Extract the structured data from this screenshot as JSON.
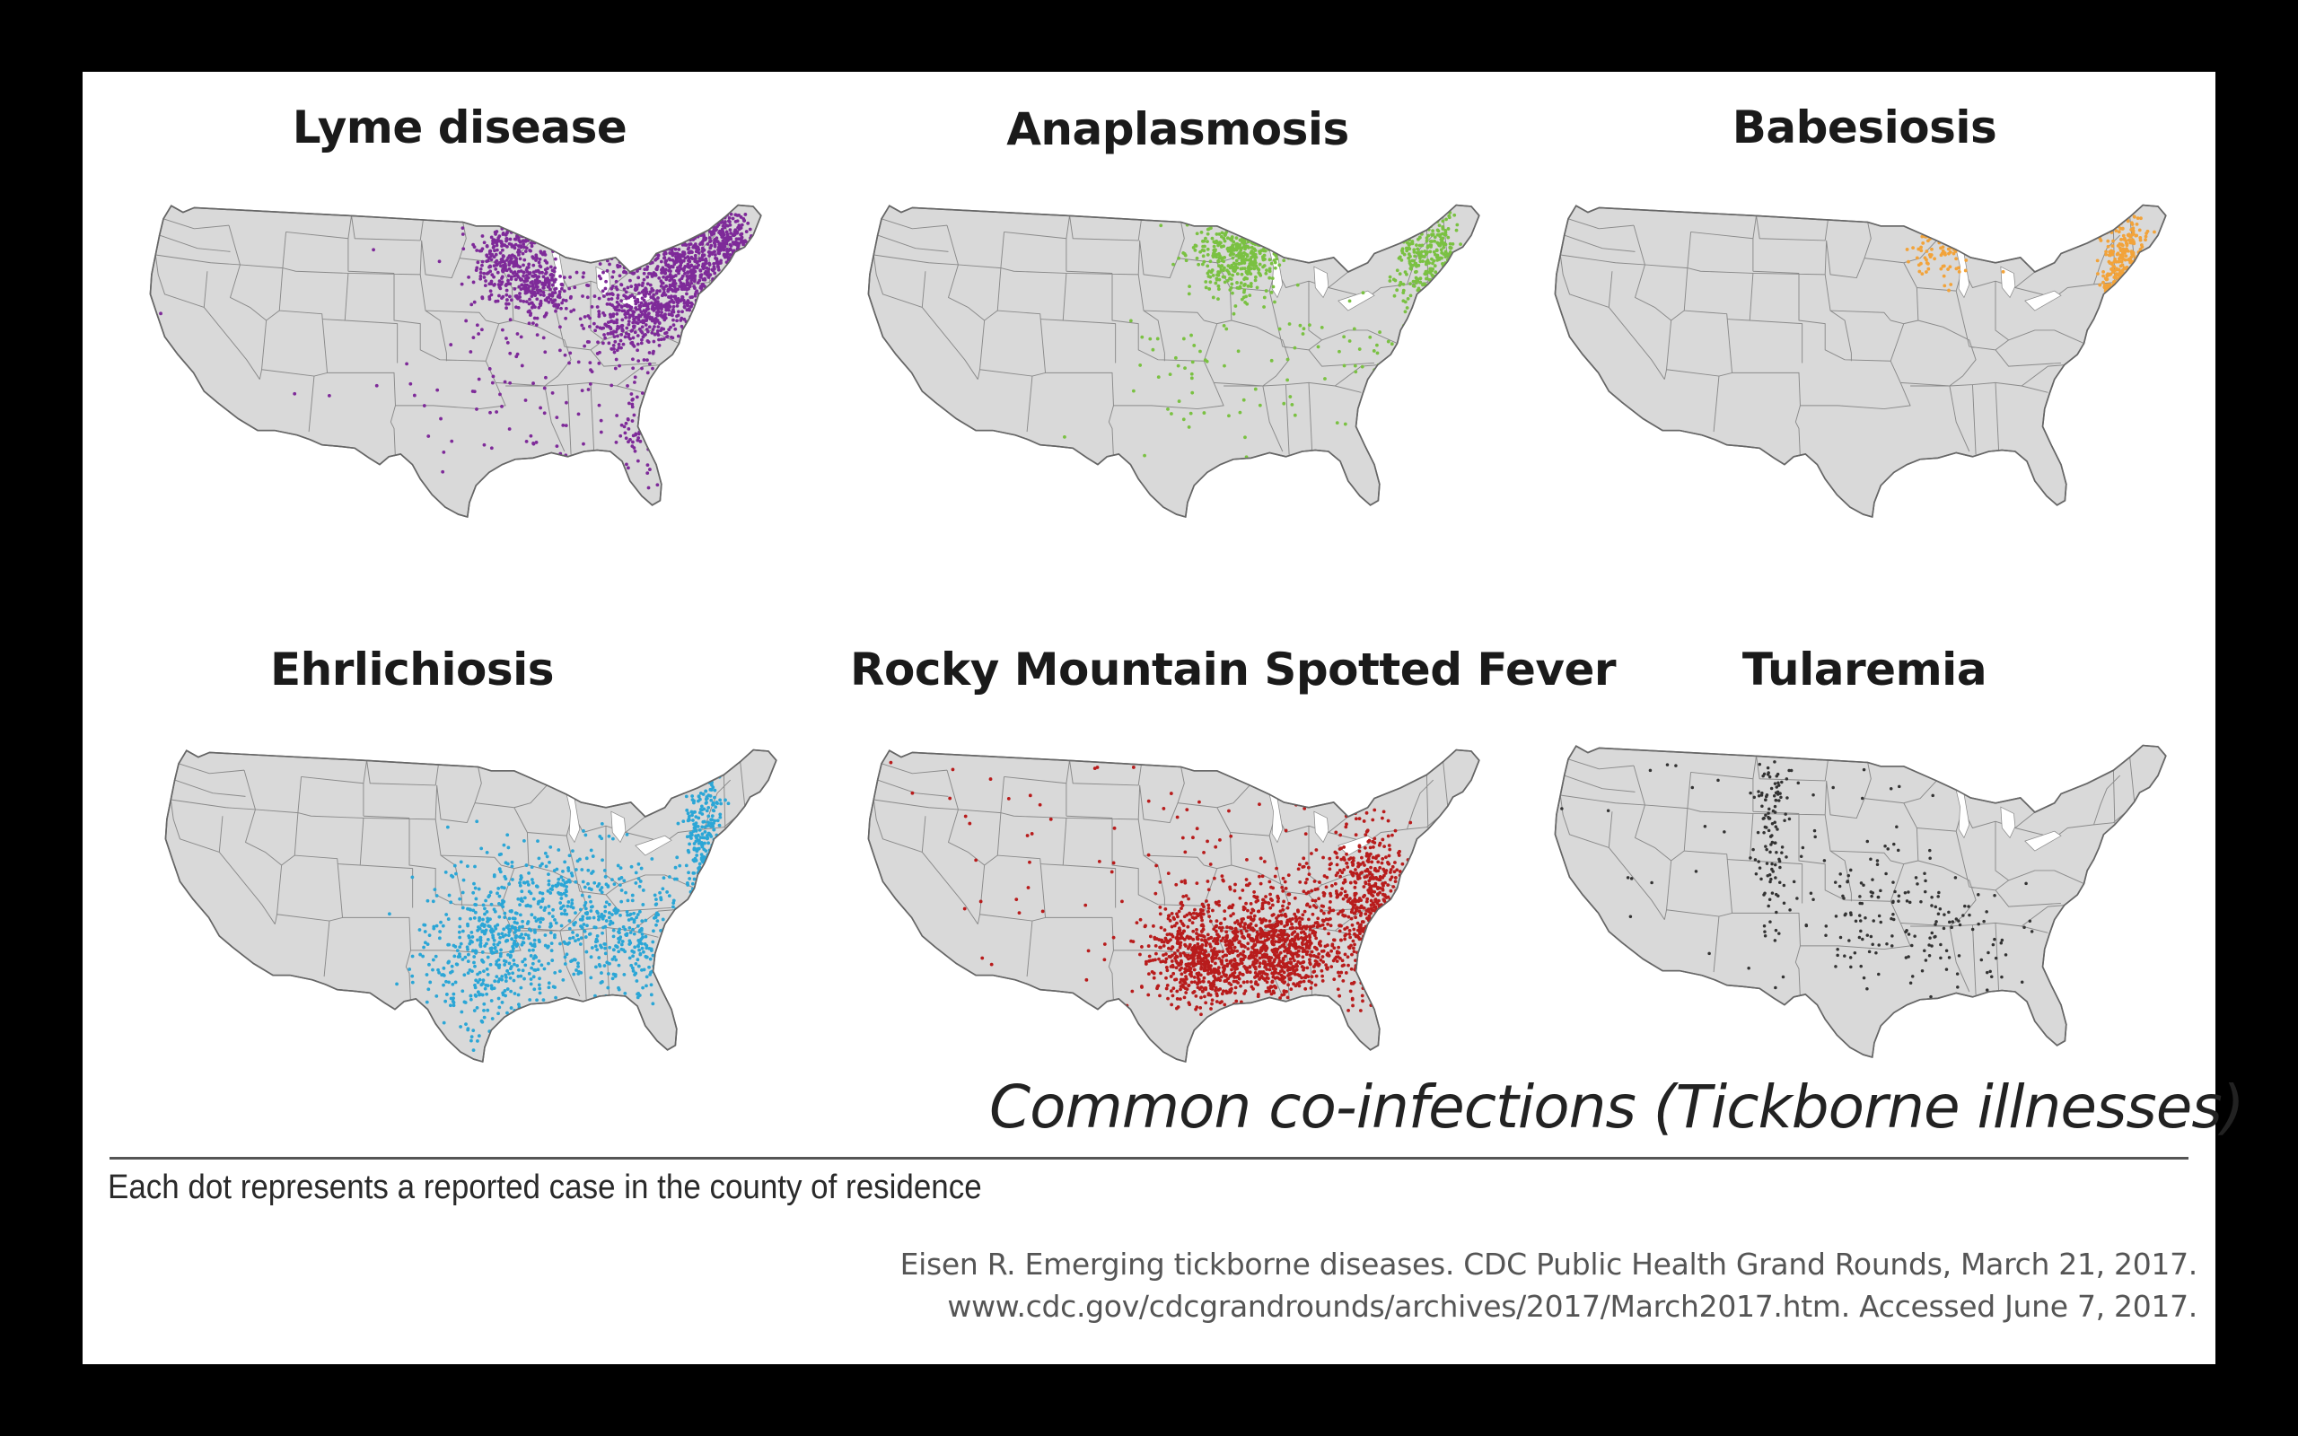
{
  "maps": [
    {
      "title": "Lyme disease",
      "color": "#7e2a99",
      "density": "very high",
      "regions": [
        "northeast",
        "upper midwest",
        "mid-atlantic"
      ]
    },
    {
      "title": "Anaplasmosis",
      "color": "#7ac142",
      "density": "high",
      "regions": [
        "upper midwest",
        "northeast"
      ]
    },
    {
      "title": "Babesiosis",
      "color": "#f2a33a",
      "density": "moderate",
      "regions": [
        "northeast",
        "upper midwest"
      ]
    },
    {
      "title": "Ehrlichiosis",
      "color": "#2ba6d6",
      "density": "high",
      "regions": [
        "south central",
        "southeast",
        "mid-atlantic"
      ]
    },
    {
      "title": "Rocky Mountain Spotted Fever",
      "color": "#b81c1c",
      "density": "very high",
      "regions": [
        "south central",
        "southeast"
      ]
    },
    {
      "title": "Tularemia",
      "color": "#333333",
      "density": "low",
      "regions": [
        "central plains",
        "south central"
      ]
    }
  ],
  "overlay_title": "Common co-infections (Tickborne illnesses)",
  "footnote": "Each dot represents a reported case in the county of residence",
  "citation": [
    "Eisen R. Emerging tickborne diseases. CDC Public Health Grand Rounds, March 21, 2017.",
    "www.cdc.gov/cdcgrandrounds/archives/2017/March2017.htm. Accessed June 7, 2017."
  ]
}
